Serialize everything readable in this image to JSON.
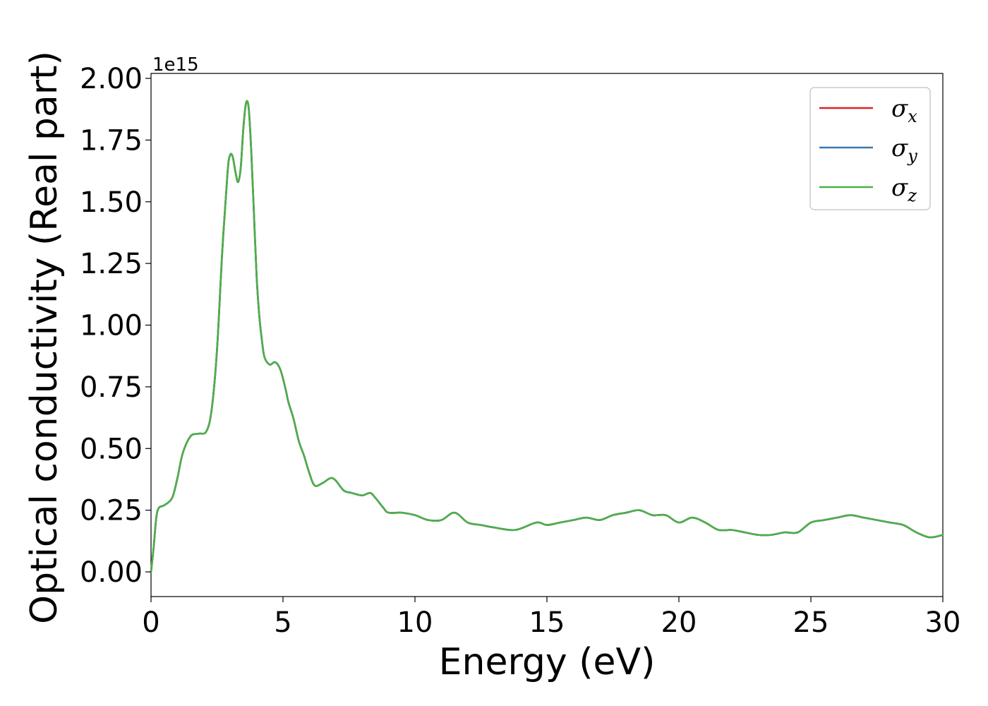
{
  "chart_data": {
    "type": "line",
    "title": "",
    "xlabel": "Energy (eV)",
    "ylabel": "Optical conductivity (Real part)",
    "y_offset_label": "1e15",
    "y_scale": 1000000000000000.0,
    "xlim": [
      0,
      30
    ],
    "ylim": [
      -0.1,
      2.02
    ],
    "xticks": [
      0,
      5,
      10,
      15,
      20,
      25,
      30
    ],
    "xtick_labels": [
      "0",
      "5",
      "10",
      "15",
      "20",
      "25",
      "30"
    ],
    "yticks": [
      0.0,
      0.25,
      0.5,
      0.75,
      1.0,
      1.25,
      1.5,
      1.75,
      2.0
    ],
    "ytick_labels": [
      "0.00",
      "0.25",
      "0.50",
      "0.75",
      "1.00",
      "1.25",
      "1.50",
      "1.75",
      "2.00"
    ],
    "grid": false,
    "legend_position": "top-right",
    "x": [
      0,
      0.1,
      0.2,
      0.3,
      0.5,
      0.8,
      1.0,
      1.2,
      1.5,
      1.8,
      2.1,
      2.3,
      2.5,
      2.7,
      2.9,
      3.0,
      3.1,
      3.2,
      3.3,
      3.4,
      3.5,
      3.6,
      3.7,
      3.8,
      3.9,
      4.0,
      4.1,
      4.2,
      4.3,
      4.5,
      4.7,
      4.9,
      5.1,
      5.2,
      5.4,
      5.6,
      5.8,
      6.0,
      6.2,
      6.5,
      6.8,
      7.0,
      7.3,
      7.6,
      8.0,
      8.3,
      8.5,
      8.8,
      9.0,
      9.5,
      10.0,
      10.5,
      11.0,
      11.5,
      12.0,
      12.5,
      13.0,
      13.8,
      14.6,
      15.0,
      15.5,
      16.0,
      16.5,
      17.0,
      17.5,
      18.0,
      18.5,
      19.0,
      19.5,
      20.0,
      20.5,
      21.0,
      21.5,
      22.0,
      22.5,
      23.0,
      23.5,
      24.0,
      24.5,
      25.0,
      25.5,
      26.0,
      26.5,
      27.0,
      27.5,
      28.0,
      28.5,
      29.0,
      29.5,
      30.0
    ],
    "series": [
      {
        "name": "σx",
        "label_main": "σ",
        "label_sub": "x",
        "color": "#d62728",
        "values": [
          0.0,
          0.1,
          0.22,
          0.26,
          0.27,
          0.3,
          0.38,
          0.48,
          0.55,
          0.56,
          0.57,
          0.66,
          0.9,
          1.3,
          1.62,
          1.69,
          1.68,
          1.62,
          1.58,
          1.64,
          1.8,
          1.9,
          1.88,
          1.7,
          1.45,
          1.2,
          1.04,
          0.94,
          0.87,
          0.84,
          0.85,
          0.82,
          0.74,
          0.69,
          0.62,
          0.53,
          0.47,
          0.4,
          0.35,
          0.36,
          0.38,
          0.37,
          0.33,
          0.32,
          0.31,
          0.32,
          0.3,
          0.26,
          0.24,
          0.24,
          0.23,
          0.21,
          0.21,
          0.24,
          0.2,
          0.19,
          0.18,
          0.17,
          0.2,
          0.19,
          0.2,
          0.21,
          0.22,
          0.21,
          0.23,
          0.24,
          0.25,
          0.23,
          0.23,
          0.2,
          0.22,
          0.2,
          0.17,
          0.17,
          0.16,
          0.15,
          0.15,
          0.16,
          0.16,
          0.2,
          0.21,
          0.22,
          0.23,
          0.22,
          0.21,
          0.2,
          0.19,
          0.16,
          0.14,
          0.15
        ]
      },
      {
        "name": "σy",
        "label_main": "σ",
        "label_sub": "y",
        "color": "#3b78b0",
        "values": [
          0.0,
          0.1,
          0.22,
          0.26,
          0.27,
          0.3,
          0.38,
          0.48,
          0.55,
          0.56,
          0.57,
          0.66,
          0.9,
          1.3,
          1.62,
          1.69,
          1.68,
          1.62,
          1.58,
          1.64,
          1.8,
          1.9,
          1.88,
          1.7,
          1.45,
          1.2,
          1.04,
          0.94,
          0.87,
          0.84,
          0.85,
          0.82,
          0.74,
          0.69,
          0.62,
          0.53,
          0.47,
          0.4,
          0.35,
          0.36,
          0.38,
          0.37,
          0.33,
          0.32,
          0.31,
          0.32,
          0.3,
          0.26,
          0.24,
          0.24,
          0.23,
          0.21,
          0.21,
          0.24,
          0.2,
          0.19,
          0.18,
          0.17,
          0.2,
          0.19,
          0.2,
          0.21,
          0.22,
          0.21,
          0.23,
          0.24,
          0.25,
          0.23,
          0.23,
          0.2,
          0.22,
          0.2,
          0.17,
          0.17,
          0.16,
          0.15,
          0.15,
          0.16,
          0.16,
          0.2,
          0.21,
          0.22,
          0.23,
          0.22,
          0.21,
          0.2,
          0.19,
          0.16,
          0.14,
          0.15
        ]
      },
      {
        "name": "σz",
        "label_main": "σ",
        "label_sub": "z",
        "color": "#4daf4a",
        "values": [
          0.0,
          0.1,
          0.22,
          0.26,
          0.27,
          0.3,
          0.38,
          0.48,
          0.55,
          0.56,
          0.57,
          0.66,
          0.9,
          1.3,
          1.62,
          1.69,
          1.68,
          1.62,
          1.58,
          1.64,
          1.8,
          1.9,
          1.88,
          1.7,
          1.45,
          1.2,
          1.04,
          0.94,
          0.87,
          0.84,
          0.85,
          0.82,
          0.74,
          0.69,
          0.62,
          0.53,
          0.47,
          0.4,
          0.35,
          0.36,
          0.38,
          0.37,
          0.33,
          0.32,
          0.31,
          0.32,
          0.3,
          0.26,
          0.24,
          0.24,
          0.23,
          0.21,
          0.21,
          0.24,
          0.2,
          0.19,
          0.18,
          0.17,
          0.2,
          0.19,
          0.2,
          0.21,
          0.22,
          0.21,
          0.23,
          0.24,
          0.25,
          0.23,
          0.23,
          0.2,
          0.22,
          0.2,
          0.17,
          0.17,
          0.16,
          0.15,
          0.15,
          0.16,
          0.16,
          0.2,
          0.21,
          0.22,
          0.23,
          0.22,
          0.21,
          0.2,
          0.19,
          0.16,
          0.14,
          0.15
        ]
      }
    ]
  }
}
